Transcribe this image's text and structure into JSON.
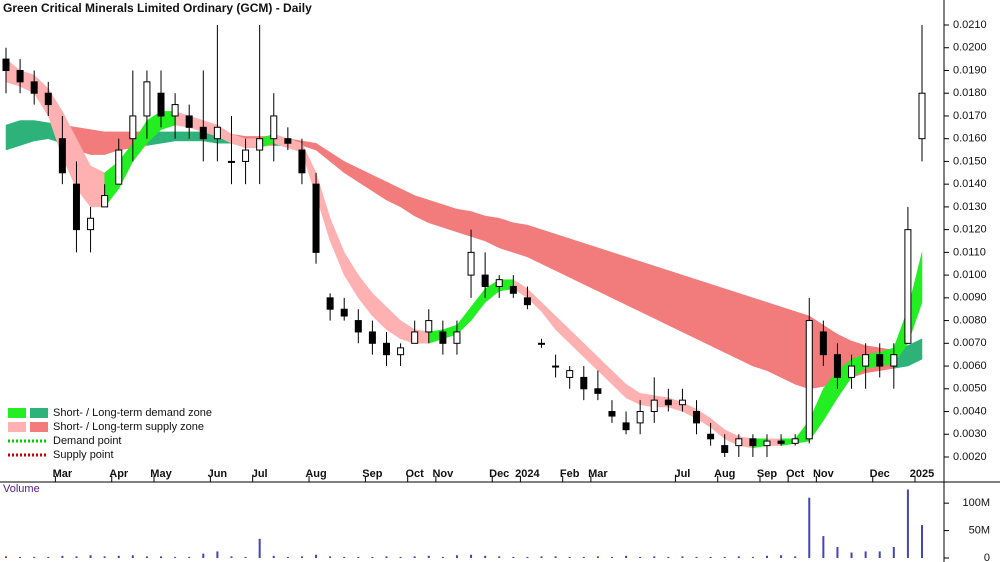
{
  "chart_data": {
    "type": "candlestick",
    "title": "Green Critical Minerals Limited Ordinary (GCM) - Daily",
    "categories": [
      null,
      null,
      null,
      null,
      "Mar",
      null,
      null,
      null,
      "Apr",
      null,
      null,
      "May",
      null,
      null,
      null,
      "Jun",
      null,
      null,
      "Jul",
      null,
      null,
      null,
      "Aug",
      null,
      null,
      null,
      "Sep",
      null,
      null,
      "Oct",
      null,
      "Nov",
      null,
      null,
      null,
      "Dec",
      null,
      "2024",
      null,
      null,
      "Feb",
      null,
      "Mar",
      null,
      null,
      null,
      null,
      null,
      "Jul",
      null,
      null,
      "Aug",
      null,
      null,
      "Sep",
      null,
      "Oct",
      null,
      "Nov",
      null,
      null,
      null,
      "Dec",
      null,
      null,
      "2025"
    ],
    "open": [
      0.0195,
      0.019,
      0.0185,
      0.018,
      0.016,
      0.014,
      0.012,
      0.013,
      0.014,
      0.016,
      0.017,
      0.018,
      0.017,
      0.017,
      0.0165,
      0.016,
      0.015,
      0.015,
      0.0155,
      0.016,
      0.016,
      0.0155,
      0.014,
      0.009,
      0.0085,
      0.008,
      0.0075,
      0.007,
      0.0065,
      0.007,
      0.0075,
      0.0075,
      0.007,
      0.01,
      0.01,
      0.0095,
      0.0095,
      0.009,
      0.007,
      0.006,
      0.0055,
      0.0055,
      0.005,
      0.004,
      0.0035,
      0.0035,
      0.004,
      0.0045,
      0.0043,
      0.004,
      0.003,
      0.0025,
      0.0025,
      0.0028,
      0.0025,
      0.0027,
      0.0026,
      0.0028,
      0.0075,
      0.0065,
      0.0055,
      0.006,
      0.0065,
      0.006,
      0.007,
      0.016
    ],
    "high": [
      0.02,
      0.0195,
      0.019,
      0.0185,
      0.017,
      0.015,
      0.013,
      0.014,
      0.016,
      0.019,
      0.019,
      0.019,
      0.018,
      0.0175,
      0.019,
      0.021,
      0.017,
      0.016,
      0.021,
      0.018,
      0.0165,
      0.016,
      0.0145,
      0.0092,
      0.009,
      0.0085,
      0.008,
      0.0075,
      0.007,
      0.008,
      0.0085,
      0.008,
      0.008,
      0.012,
      0.011,
      0.01,
      0.01,
      0.0095,
      0.0072,
      0.0065,
      0.006,
      0.006,
      0.0058,
      0.0045,
      0.004,
      0.0045,
      0.0055,
      0.005,
      0.005,
      0.0045,
      0.0035,
      0.003,
      0.003,
      0.003,
      0.003,
      0.003,
      0.003,
      0.009,
      0.008,
      0.007,
      0.0065,
      0.007,
      0.007,
      0.007,
      0.013,
      0.021
    ],
    "low": [
      0.018,
      0.018,
      0.0175,
      0.017,
      0.014,
      0.011,
      0.011,
      0.013,
      0.014,
      0.015,
      0.016,
      0.0165,
      0.016,
      0.016,
      0.015,
      0.015,
      0.014,
      0.014,
      0.014,
      0.015,
      0.0155,
      0.014,
      0.0105,
      0.008,
      0.008,
      0.007,
      0.0065,
      0.006,
      0.006,
      0.007,
      0.007,
      0.0065,
      0.0065,
      0.009,
      0.009,
      0.009,
      0.009,
      0.0085,
      0.0068,
      0.0055,
      0.005,
      0.0045,
      0.0045,
      0.0035,
      0.003,
      0.003,
      0.0035,
      0.004,
      0.004,
      0.003,
      0.0025,
      0.002,
      0.002,
      0.002,
      0.002,
      0.0025,
      0.0025,
      0.0026,
      0.006,
      0.005,
      0.005,
      0.005,
      0.0055,
      0.005,
      0.007,
      0.015
    ],
    "close": [
      0.019,
      0.0185,
      0.018,
      0.0175,
      0.0145,
      0.012,
      0.0125,
      0.0135,
      0.0155,
      0.017,
      0.0185,
      0.017,
      0.0175,
      0.0165,
      0.016,
      0.0165,
      0.015,
      0.0155,
      0.016,
      0.017,
      0.0158,
      0.0145,
      0.011,
      0.0085,
      0.0082,
      0.0075,
      0.007,
      0.0065,
      0.0068,
      0.0075,
      0.008,
      0.007,
      0.0075,
      0.011,
      0.0095,
      0.0098,
      0.0092,
      0.0087,
      0.007,
      0.006,
      0.0058,
      0.005,
      0.0048,
      0.0038,
      0.0032,
      0.004,
      0.0045,
      0.0043,
      0.0045,
      0.0035,
      0.0028,
      0.0022,
      0.0028,
      0.0025,
      0.0027,
      0.0026,
      0.0028,
      0.008,
      0.0065,
      0.0055,
      0.006,
      0.0065,
      0.006,
      0.0065,
      0.012,
      0.018
    ],
    "short_band": {
      "demand_color": "#22ee22",
      "supply_color": "#ffb0b0",
      "upper": [
        0.0195,
        0.019,
        0.0188,
        0.0182,
        0.0172,
        0.016,
        0.0148,
        0.0145,
        0.015,
        0.0158,
        0.0168,
        0.0172,
        0.0172,
        0.017,
        0.0168,
        0.0166,
        0.0162,
        0.016,
        0.016,
        0.0162,
        0.016,
        0.0158,
        0.0145,
        0.0125,
        0.011,
        0.01,
        0.0092,
        0.0086,
        0.008,
        0.0076,
        0.0075,
        0.0076,
        0.0078,
        0.0086,
        0.0094,
        0.0098,
        0.0098,
        0.0094,
        0.0088,
        0.0082,
        0.0076,
        0.007,
        0.0064,
        0.0058,
        0.0052,
        0.0048,
        0.0047,
        0.0046,
        0.0044,
        0.0041,
        0.0037,
        0.0032,
        0.0029,
        0.0028,
        0.0028,
        0.0028,
        0.0028,
        0.0036,
        0.005,
        0.0058,
        0.0063,
        0.0065,
        0.0066,
        0.0068,
        0.0085,
        0.011
      ],
      "lower": [
        0.0185,
        0.0183,
        0.018,
        0.017,
        0.0152,
        0.0138,
        0.013,
        0.013,
        0.0138,
        0.015,
        0.0158,
        0.0164,
        0.0166,
        0.0165,
        0.0163,
        0.0161,
        0.0158,
        0.0156,
        0.0156,
        0.0158,
        0.0156,
        0.0154,
        0.0135,
        0.0115,
        0.01,
        0.009,
        0.0082,
        0.0076,
        0.0072,
        0.007,
        0.007,
        0.0072,
        0.0074,
        0.008,
        0.0088,
        0.0093,
        0.0094,
        0.009,
        0.0084,
        0.0076,
        0.007,
        0.0064,
        0.0058,
        0.0052,
        0.0046,
        0.0043,
        0.0042,
        0.0042,
        0.004,
        0.0037,
        0.0033,
        0.0028,
        0.0025,
        0.0024,
        0.0025,
        0.0025,
        0.0026,
        0.0027,
        0.0036,
        0.0046,
        0.0055,
        0.0059,
        0.006,
        0.0061,
        0.007,
        0.0088
      ]
    },
    "long_band": {
      "demand_color": "#2db37a",
      "supply_color": "#f27c7c",
      "upper": [
        0.0166,
        0.0168,
        0.0168,
        0.0167,
        0.0166,
        0.0165,
        0.0164,
        0.0163,
        0.0163,
        0.0163,
        0.0163,
        0.0163,
        0.0163,
        0.0163,
        0.0163,
        0.0162,
        0.0162,
        0.0161,
        0.0161,
        0.0161,
        0.016,
        0.0159,
        0.0158,
        0.0154,
        0.015,
        0.0147,
        0.0144,
        0.0141,
        0.0138,
        0.0135,
        0.0133,
        0.0131,
        0.0129,
        0.0128,
        0.0126,
        0.0125,
        0.0123,
        0.0122,
        0.012,
        0.0118,
        0.0116,
        0.0114,
        0.0112,
        0.011,
        0.0108,
        0.0106,
        0.0104,
        0.0102,
        0.01,
        0.0098,
        0.0096,
        0.0094,
        0.0092,
        0.009,
        0.0088,
        0.0086,
        0.0084,
        0.0082,
        0.0078,
        0.0074,
        0.0071,
        0.0069,
        0.0068,
        0.0067,
        0.0069,
        0.0072
      ],
      "lower": [
        0.0155,
        0.0157,
        0.0159,
        0.016,
        0.0158,
        0.0155,
        0.0153,
        0.0153,
        0.0155,
        0.0156,
        0.0157,
        0.0158,
        0.0159,
        0.0159,
        0.0159,
        0.0158,
        0.0158,
        0.0157,
        0.0157,
        0.0157,
        0.0157,
        0.0157,
        0.0155,
        0.015,
        0.0145,
        0.0141,
        0.0137,
        0.0133,
        0.013,
        0.0126,
        0.0123,
        0.0121,
        0.0119,
        0.0117,
        0.0115,
        0.0112,
        0.011,
        0.0108,
        0.0105,
        0.0102,
        0.0099,
        0.0096,
        0.0093,
        0.009,
        0.0087,
        0.0084,
        0.0081,
        0.0078,
        0.0075,
        0.0072,
        0.0069,
        0.0066,
        0.0063,
        0.006,
        0.0058,
        0.0055,
        0.0052,
        0.005,
        0.0051,
        0.0053,
        0.0055,
        0.0057,
        0.0058,
        0.0059,
        0.006,
        0.0063
      ]
    },
    "ylim": [
      0.0009,
      0.0221
    ],
    "yticks": [
      {
        "value": 0.002,
        "label": "0.0020"
      },
      {
        "value": 0.003,
        "label": "0.0030"
      },
      {
        "value": 0.004,
        "label": "0.0040"
      },
      {
        "value": 0.005,
        "label": "0.0050"
      },
      {
        "value": 0.006,
        "label": "0.0060"
      },
      {
        "value": 0.007,
        "label": "0.0070"
      },
      {
        "value": 0.008,
        "label": "0.0080"
      },
      {
        "value": 0.009,
        "label": "0.0090"
      },
      {
        "value": 0.01,
        "label": "0.0100"
      },
      {
        "value": 0.011,
        "label": "0.0110"
      },
      {
        "value": 0.012,
        "label": "0.0120"
      },
      {
        "value": 0.013,
        "label": "0.0130"
      },
      {
        "value": 0.014,
        "label": "0.0140"
      },
      {
        "value": 0.015,
        "label": "0.0150"
      },
      {
        "value": 0.016,
        "label": "0.0160"
      },
      {
        "value": 0.017,
        "label": "0.0170"
      },
      {
        "value": 0.018,
        "label": "0.0180"
      },
      {
        "value": 0.019,
        "label": "0.0190"
      },
      {
        "value": 0.02,
        "label": "0.0200"
      },
      {
        "value": 0.021,
        "label": "0.0210"
      }
    ],
    "legend": [
      {
        "label": "Short- / Long-term demand zone",
        "colors": [
          "#22ee22",
          "#2db37a"
        ]
      },
      {
        "label": "Short- / Long-term supply zone",
        "colors": [
          "#ffb0b0",
          "#f27c7c"
        ]
      },
      {
        "label": "Demand point",
        "colors": [
          "#00cc00"
        ]
      },
      {
        "label": "Supply point",
        "colors": [
          "#cc0000"
        ]
      }
    ],
    "volume": {
      "title": "Volume",
      "color": "#4444bb",
      "values": [
        3000000,
        2000000,
        2000000,
        2000000,
        4000000,
        3000000,
        5000000,
        3000000,
        4000000,
        5000000,
        3000000,
        3000000,
        2000000,
        2000000,
        8000000,
        12000000,
        3000000,
        2000000,
        35000000,
        4000000,
        2000000,
        3000000,
        6000000,
        3000000,
        2000000,
        2000000,
        2000000,
        3000000,
        2000000,
        3000000,
        4000000,
        2000000,
        5000000,
        6000000,
        4000000,
        3000000,
        2000000,
        2000000,
        3000000,
        3000000,
        2000000,
        2000000,
        3000000,
        2000000,
        4000000,
        2000000,
        3000000,
        2000000,
        3000000,
        2000000,
        2000000,
        2000000,
        3000000,
        2000000,
        4000000,
        5000000,
        3000000,
        110000000,
        40000000,
        20000000,
        10000000,
        12000000,
        12000000,
        20000000,
        125000000,
        60000000
      ],
      "ylim": [
        0,
        124000000
      ],
      "yticks": [
        0,
        {
          "value": 50000000,
          "label": "50M"
        },
        {
          "value": 100000000,
          "label": "100M"
        }
      ]
    }
  }
}
